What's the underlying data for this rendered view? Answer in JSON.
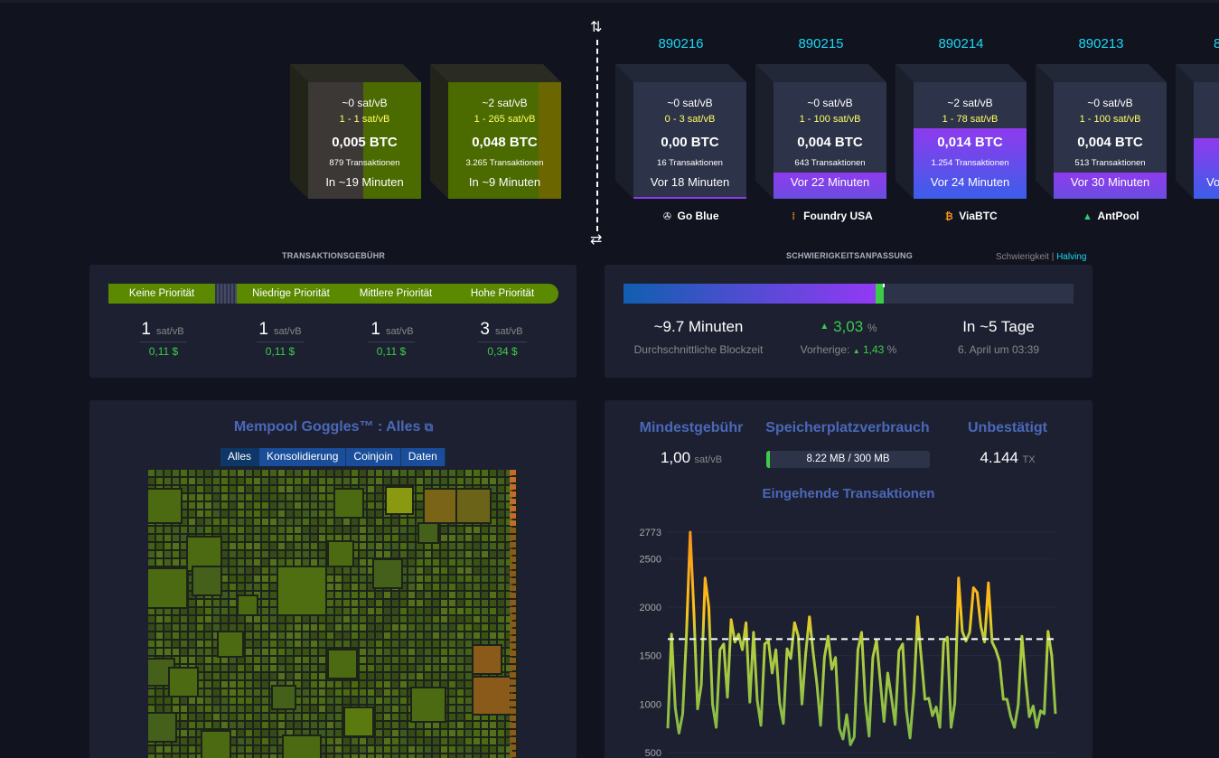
{
  "colors": {
    "accent": "#1bd8f4",
    "green": "#3bcc49",
    "fee_green": "#5b8a00",
    "purple": "#8f3bee",
    "blue": "#3b5ee9"
  },
  "projected_blocks": [
    {
      "fee": "~0 sat/vB",
      "range": "1 - 1 sat/vB",
      "btc": "0,005 BTC",
      "tx": "879 Transaktionen",
      "time": "In ~19 Minuten",
      "fill_fraction": 1.0
    },
    {
      "fee": "~2 sat/vB",
      "range": "1 - 265 sat/vB",
      "btc": "0,048 BTC",
      "tx": "3.265 Transaktionen",
      "time": "In ~9 Minuten",
      "fill_fraction": 1.0
    }
  ],
  "mined_blocks": [
    {
      "height": "890216",
      "fee": "~0 sat/vB",
      "range": "0 - 3 sat/vB",
      "btc": "0,00 BTC",
      "tx": "16 Transaktionen",
      "time": "Vor 18 Minuten",
      "pool": "Go Blue",
      "pool_icon": "ship-wheel-icon",
      "fill_fraction": 0.02
    },
    {
      "height": "890215",
      "fee": "~0 sat/vB",
      "range": "1 - 100 sat/vB",
      "btc": "0,004 BTC",
      "tx": "643 Transaktionen",
      "time": "Vor 22 Minuten",
      "pool": "Foundry USA",
      "pool_icon": "foundry-icon",
      "fill_fraction": 0.22
    },
    {
      "height": "890214",
      "fee": "~2 sat/vB",
      "range": "1 - 78 sat/vB",
      "btc": "0,014 BTC",
      "tx": "1.254 Transaktionen",
      "time": "Vor 24 Minuten",
      "pool": "ViaBTC",
      "pool_icon": "bitcoin-coin-icon",
      "fill_fraction": 0.6
    },
    {
      "height": "890213",
      "fee": "~0 sat/vB",
      "range": "1 - 100 sat/vB",
      "btc": "0,004 BTC",
      "tx": "513 Transaktionen",
      "time": "Vor 30 Minuten",
      "pool": "AntPool",
      "pool_icon": "antpool-icon",
      "fill_fraction": 0.22
    }
  ],
  "partial_block": {
    "height": "8",
    "time": "Vo"
  },
  "fees": {
    "title": "TRANSAKTIONSGEBÜHR",
    "labels": [
      "Keine Priorität",
      "Niedrige Priorität",
      "Mittlere Priorität",
      "Hohe Priorität"
    ],
    "values": [
      "1",
      "1",
      "1",
      "3"
    ],
    "unit": "sat/vB",
    "usd": [
      "0,11 $",
      "0,11 $",
      "0,11 $",
      "0,34 $"
    ]
  },
  "difficulty": {
    "title": "SCHWIERIGKEITSANPASSUNG",
    "toggle_a": "Schwierigkeit",
    "toggle_sep": " | ",
    "toggle_b": "Halving",
    "progress_fraction": 0.57,
    "avg_time": "~9.7 Minuten",
    "avg_label": "Durchschnittliche Blockzeit",
    "change": "3,03",
    "change_unit": "%",
    "prev_label": "Vorherige:",
    "prev": "1,43",
    "prev_unit": "%",
    "eta": "In ~5 Tage",
    "eta_date": "6. April um 03:39"
  },
  "goggles": {
    "title": "Mempool Goggles™ : Alles",
    "tabs": [
      "Alles",
      "Konsolidierung",
      "Coinjoin",
      "Daten"
    ],
    "active_tab": "Alles"
  },
  "mempool_stats": {
    "min_fee_label": "Mindestgebühr",
    "min_fee": "1,00",
    "min_fee_unit": "sat/vB",
    "memory_label": "Speicherplatzverbrauch",
    "memory": "8.22 MB / 300 MB",
    "memory_fraction": 0.027,
    "unconfirmed_label": "Unbestätigt",
    "unconfirmed": "4.144",
    "unconfirmed_unit": "TX",
    "incoming_label": "Eingehende Transaktionen"
  },
  "chart_data": {
    "type": "line",
    "title": "Eingehende Transaktionen",
    "ylim": [
      500,
      2773
    ],
    "y_ticks": [
      "2773",
      "2500",
      "2000",
      "1500",
      "1000",
      "500"
    ],
    "threshold": 1670,
    "series": [
      {
        "values": [
          750,
          1720,
          960,
          700,
          900,
          1700,
          2773,
          1950,
          950,
          1200,
          2300,
          2000,
          1000,
          760,
          1560,
          1620,
          1070,
          1870,
          1640,
          1720,
          1560,
          1840,
          1020,
          1740,
          1040,
          780,
          1620,
          1650,
          1320,
          1560,
          1010,
          800,
          1570,
          1470,
          1840,
          1700,
          1000,
          1520,
          1900,
          1530,
          1210,
          780,
          1480,
          1700,
          1360,
          1480,
          750,
          640,
          890,
          580,
          660,
          1560,
          1740,
          1030,
          670,
          1480,
          1660,
          1240,
          820,
          1320,
          1070,
          790,
          1550,
          1620,
          940,
          650,
          1120,
          1900,
          1480,
          1050,
          1060,
          880,
          970,
          760,
          1640,
          1690,
          760,
          1010,
          2300,
          1750,
          1650,
          1740,
          2200,
          2150,
          1800,
          1640,
          2250,
          1640,
          1560,
          1440,
          1050,
          1050,
          870,
          760,
          990,
          1700,
          1250,
          870,
          980,
          760,
          930,
          900,
          1750,
          1500,
          900
        ]
      }
    ]
  }
}
